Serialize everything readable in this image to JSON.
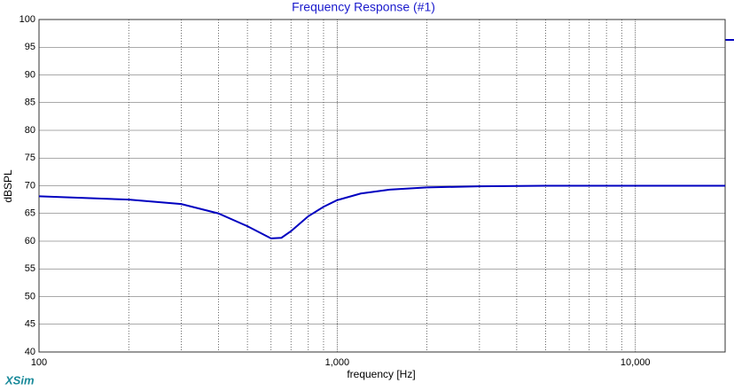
{
  "chart_data": {
    "type": "line",
    "title": "Frequency Response (#1)",
    "x_label": "frequency [Hz]",
    "y_label": "dBSPL",
    "watermark": "XSim",
    "log_x": true,
    "grid": true,
    "xlim": [
      100,
      20000
    ],
    "xticks": [
      100,
      {
        "value": 1000,
        "label": "1,000"
      },
      {
        "value": 10000,
        "label": "10,000"
      }
    ],
    "x_minor_ticks": [
      200,
      300,
      400,
      500,
      600,
      700,
      800,
      900,
      2000,
      3000,
      4000,
      5000,
      6000,
      7000,
      8000,
      9000
    ],
    "ylim": [
      40,
      100
    ],
    "yticks": [
      40,
      45,
      50,
      55,
      60,
      65,
      70,
      75,
      80,
      85,
      90,
      95,
      100
    ],
    "series": [
      {
        "name": "Frequency Response (#1)",
        "color": "#0000c0",
        "x": [
          100,
          200,
          300,
          400,
          500,
          600,
          650,
          700,
          800,
          900,
          1000,
          1200,
          1500,
          2000,
          3000,
          5000,
          10000,
          20000
        ],
        "values": [
          68.1,
          67.5,
          66.7,
          65.0,
          62.7,
          60.5,
          60.6,
          61.8,
          64.5,
          66.2,
          67.4,
          68.6,
          69.3,
          69.7,
          69.9,
          70.0,
          70.0,
          70.0
        ]
      }
    ]
  }
}
